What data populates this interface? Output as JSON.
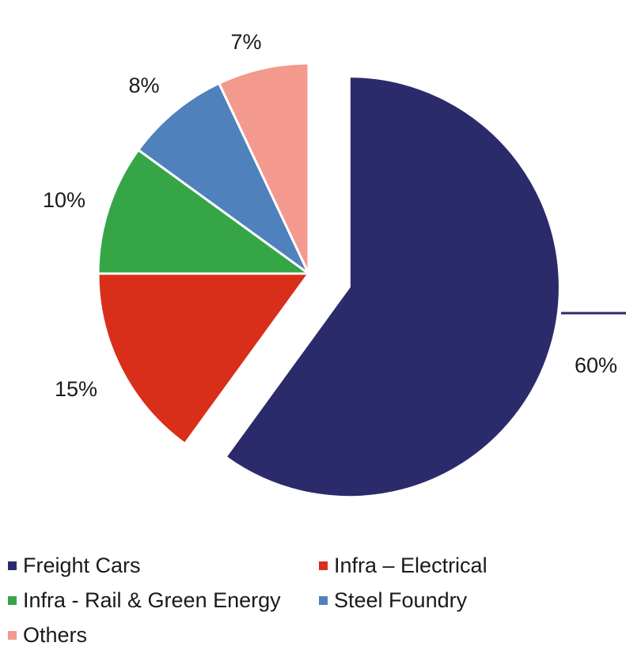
{
  "chart_data": {
    "type": "pie",
    "title": "",
    "legend_position": "bottom",
    "exploded_slice": "Freight Cars",
    "slices": [
      {
        "name": "Freight Cars",
        "value": 60,
        "label": "60%",
        "color": "#2b2b6b"
      },
      {
        "name": "Infra – Electrical",
        "value": 15,
        "label": "15%",
        "color": "#d92e1a"
      },
      {
        "name": "Infra - Rail & Green Energy",
        "value": 10,
        "label": "10%",
        "color": "#36a546"
      },
      {
        "name": "Steel Foundry",
        "value": 8,
        "label": "8%",
        "color": "#4f81bd"
      },
      {
        "name": "Others",
        "value": 7,
        "label": "7%",
        "color": "#f4998d"
      }
    ]
  }
}
